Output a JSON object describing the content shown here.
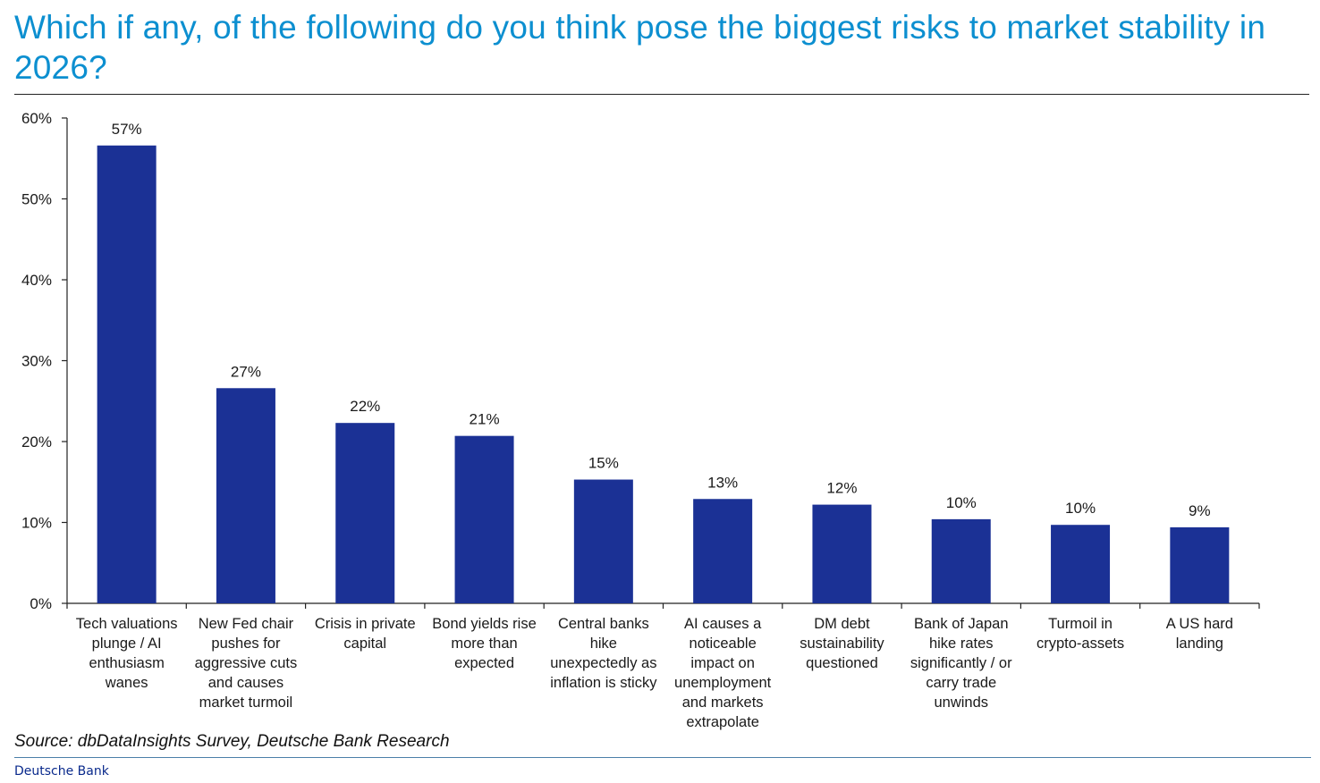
{
  "title": "Which if any, of the following do you think pose the biggest risks to market stability in 2026?",
  "source": "Source: dbDataInsights Survey, Deutsche Bank Research",
  "brand": "Deutsche Bank",
  "colors": {
    "title": "#0c8fd0",
    "bar": "#1b3195",
    "axis": "#222222"
  },
  "chart_data": {
    "type": "bar",
    "title": "Which if any, of the following do you think pose the biggest risks to market stability in 2026?",
    "xlabel": "",
    "ylabel": "",
    "ylim": [
      0,
      60
    ],
    "yticks": [
      0,
      10,
      20,
      30,
      40,
      50,
      60
    ],
    "ytick_labels": [
      "0%",
      "10%",
      "20%",
      "30%",
      "40%",
      "50%",
      "60%"
    ],
    "grid": false,
    "legend": "none",
    "categories": [
      [
        "Tech valuations",
        "plunge / AI",
        "enthusiasm",
        "wanes"
      ],
      [
        "New Fed chair",
        "pushes for",
        "aggressive cuts",
        "and causes",
        "market turmoil"
      ],
      [
        "Crisis in private",
        "capital"
      ],
      [
        "Bond yields rise",
        "more than",
        "expected"
      ],
      [
        "Central banks",
        "hike",
        "unexpectedly as",
        "inflation is sticky"
      ],
      [
        "AI causes a",
        "noticeable",
        "impact on",
        "unemployment",
        "and markets",
        "extrapolate"
      ],
      [
        "DM debt",
        "sustainability",
        "questioned"
      ],
      [
        "Bank of Japan",
        "hike rates",
        "significantly / or",
        "carry trade",
        "unwinds"
      ],
      [
        "Turmoil in",
        "crypto-assets"
      ],
      [
        "A US hard",
        "landing"
      ]
    ],
    "values": [
      56.6,
      26.6,
      22.3,
      20.7,
      15.3,
      12.9,
      12.2,
      10.4,
      9.7,
      9.4
    ],
    "data_labels": [
      "57%",
      "27%",
      "22%",
      "21%",
      "15%",
      "13%",
      "12%",
      "10%",
      "10%",
      "9%"
    ]
  }
}
